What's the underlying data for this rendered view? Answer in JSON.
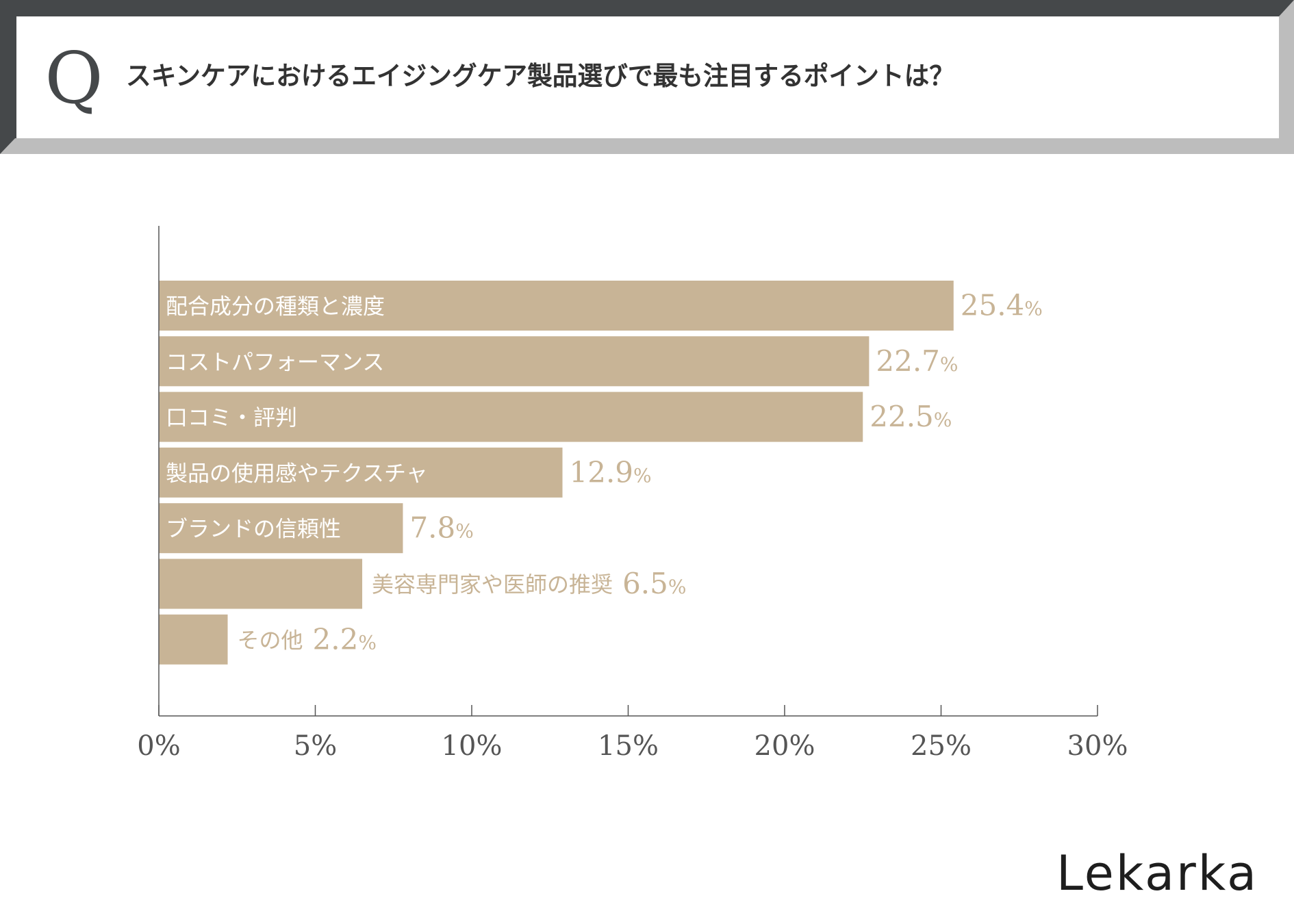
{
  "question": {
    "mark": "Q",
    "text": "スキンケアにおけるエイジングケア製品選びで最も注目するポイントは？"
  },
  "brand": {
    "logo": "Lekarka"
  },
  "colors": {
    "bar": "#c8b496",
    "frame_dark": "#45484a",
    "frame_light": "#bdbdbd",
    "axis": "#555555",
    "tick_text": "#555555"
  },
  "chart_data": {
    "type": "bar",
    "orientation": "horizontal",
    "title": "スキンケアにおけるエイジングケア製品選びで最も注目するポイントは？",
    "xlabel": "",
    "ylabel": "",
    "xlim": [
      0,
      30
    ],
    "xticks": [
      "0%",
      "5%",
      "10%",
      "15%",
      "20%",
      "25%",
      "30%"
    ],
    "value_suffix": "%",
    "categories": [
      "配合成分の種類と濃度",
      "コストパフォーマンス",
      "口コミ・評判",
      "製品の使用感やテクスチャ",
      "ブランドの信頼性",
      "美容専門家や医師の推奨",
      "その他"
    ],
    "values": [
      25.4,
      22.7,
      22.5,
      12.9,
      7.8,
      6.5,
      2.2
    ],
    "label_placement": [
      "inside",
      "inside",
      "inside",
      "inside",
      "inside",
      "outside",
      "outside"
    ]
  }
}
